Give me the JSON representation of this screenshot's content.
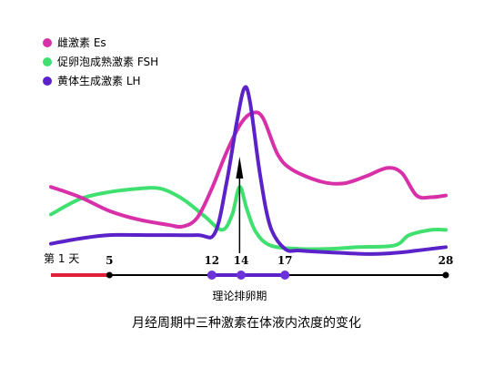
{
  "chart_data": {
    "type": "line",
    "title": "",
    "caption": "月经周期中三种激素在体液内浓度的变化",
    "xlabel": "",
    "ylabel": "",
    "xlim": [
      1,
      28
    ],
    "ylim": [
      0,
      100
    ],
    "grid": false,
    "legend_position": "top-left",
    "x_ticks": [
      {
        "day": 1,
        "label": "第 1 天"
      },
      {
        "day": 5,
        "label": "5"
      },
      {
        "day": 12,
        "label": "12"
      },
      {
        "day": 14,
        "label": "14"
      },
      {
        "day": 17,
        "label": "17"
      },
      {
        "day": 28,
        "label": "28"
      }
    ],
    "phases": [
      {
        "from": 1,
        "to": 5,
        "color": "#e0203a"
      },
      {
        "from": 5,
        "to": 12,
        "color": "#000000"
      },
      {
        "from": 12,
        "to": 17,
        "color": "#5a22c8"
      },
      {
        "from": 17,
        "to": 28,
        "color": "#000000"
      }
    ],
    "ovulation_marker": {
      "day": 13.9,
      "label": "理论排卵期"
    },
    "series": [
      {
        "name": "雌激素 Es",
        "color": "#d830a8",
        "points": [
          [
            1,
            38
          ],
          [
            3,
            32
          ],
          [
            5,
            24
          ],
          [
            7,
            19
          ],
          [
            9,
            16
          ],
          [
            10,
            15
          ],
          [
            11,
            20
          ],
          [
            12,
            37
          ],
          [
            13,
            58
          ],
          [
            14,
            75
          ],
          [
            14.8,
            81
          ],
          [
            15.5,
            78
          ],
          [
            16.5,
            57
          ],
          [
            17.5,
            48
          ],
          [
            19.5,
            41
          ],
          [
            21,
            40
          ],
          [
            22.5,
            44
          ],
          [
            24,
            49
          ],
          [
            25,
            46
          ],
          [
            26,
            33
          ],
          [
            27,
            32
          ],
          [
            28,
            33
          ]
        ]
      },
      {
        "name": "促卵泡成熟激素 FSH",
        "color": "#40e070",
        "points": [
          [
            1,
            22
          ],
          [
            3,
            31
          ],
          [
            5,
            35
          ],
          [
            7,
            37
          ],
          [
            8.5,
            37
          ],
          [
            10,
            31
          ],
          [
            11.5,
            21
          ],
          [
            12.7,
            13
          ],
          [
            13.4,
            22
          ],
          [
            13.9,
            38
          ],
          [
            14.4,
            25
          ],
          [
            15,
            12
          ],
          [
            16,
            4
          ],
          [
            18,
            2
          ],
          [
            20,
            2
          ],
          [
            22,
            3
          ],
          [
            24.5,
            4
          ],
          [
            25.5,
            10
          ],
          [
            27,
            13
          ],
          [
            28,
            13
          ]
        ]
      },
      {
        "name": "黄体生成激素 LH",
        "color": "#5a22c8",
        "points": [
          [
            1,
            5
          ],
          [
            3,
            8
          ],
          [
            5,
            10
          ],
          [
            8,
            10
          ],
          [
            11,
            10
          ],
          [
            12.2,
            11
          ],
          [
            13,
            40
          ],
          [
            13.7,
            75
          ],
          [
            14.2,
            95
          ],
          [
            14.6,
            88
          ],
          [
            15.3,
            45
          ],
          [
            16,
            15
          ],
          [
            17,
            2
          ],
          [
            18,
            1
          ],
          [
            20,
            0
          ],
          [
            23,
            -1
          ],
          [
            25,
            0
          ],
          [
            26,
            1
          ],
          [
            27,
            2
          ],
          [
            28,
            3
          ]
        ]
      }
    ]
  }
}
